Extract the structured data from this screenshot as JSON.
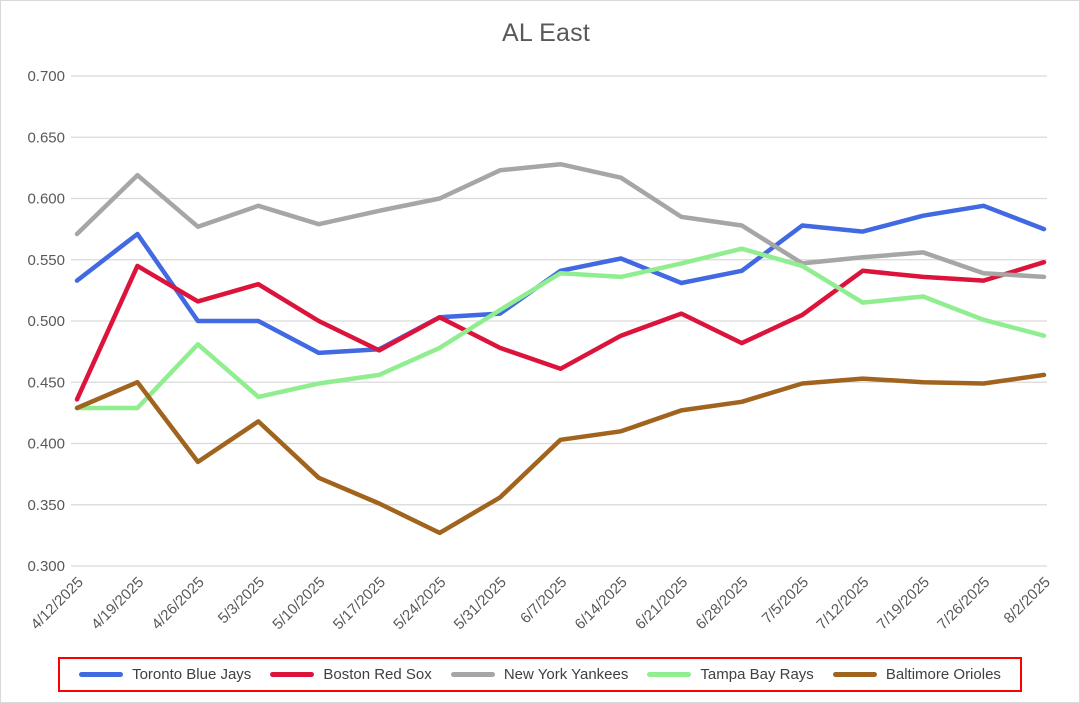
{
  "title": "AL East",
  "chart_data": {
    "type": "line",
    "title": "AL East",
    "categories": [
      "4/12/2025",
      "4/19/2025",
      "4/26/2025",
      "5/3/2025",
      "5/10/2025",
      "5/17/2025",
      "5/24/2025",
      "5/31/2025",
      "6/7/2025",
      "6/14/2025",
      "6/21/2025",
      "6/28/2025",
      "7/5/2025",
      "7/12/2025",
      "7/19/2025",
      "7/26/2025",
      "8/2/2025"
    ],
    "series": [
      {
        "name": "Toronto Blue Jays",
        "color": "#4169e1",
        "values": [
          0.533,
          0.571,
          0.5,
          0.5,
          0.474,
          0.477,
          0.503,
          0.506,
          0.541,
          0.551,
          0.531,
          0.541,
          0.578,
          0.573,
          0.586,
          0.594,
          0.575
        ]
      },
      {
        "name": "Boston Red Sox",
        "color": "#dc143c",
        "values": [
          0.436,
          0.545,
          0.516,
          0.53,
          0.5,
          0.476,
          0.503,
          0.478,
          0.461,
          0.488,
          0.506,
          0.482,
          0.505,
          0.541,
          0.536,
          0.533,
          0.548
        ]
      },
      {
        "name": "New York Yankees",
        "color": "#a6a6a6",
        "values": [
          0.571,
          0.619,
          0.577,
          0.594,
          0.579,
          0.59,
          0.6,
          0.623,
          0.628,
          0.617,
          0.585,
          0.578,
          0.547,
          0.552,
          0.556,
          0.539,
          0.536
        ]
      },
      {
        "name": "Tampa Bay Rays",
        "color": "#90ee90",
        "values": [
          0.429,
          0.429,
          0.481,
          0.438,
          0.449,
          0.456,
          0.478,
          0.509,
          0.539,
          0.536,
          0.547,
          0.559,
          0.545,
          0.515,
          0.52,
          0.501,
          0.488
        ]
      },
      {
        "name": "Baltimore Orioles",
        "color": "#a0641e",
        "values": [
          0.429,
          0.45,
          0.385,
          0.418,
          0.372,
          0.351,
          0.327,
          0.356,
          0.403,
          0.41,
          0.427,
          0.434,
          0.449,
          0.453,
          0.45,
          0.449,
          0.456
        ]
      }
    ],
    "xlabel": "",
    "ylabel": "",
    "ylim": [
      0.3,
      0.7
    ],
    "ytick_step": 0.05,
    "ytick_labels": [
      "0.300",
      "0.350",
      "0.400",
      "0.450",
      "0.500",
      "0.550",
      "0.600",
      "0.650",
      "0.700"
    ],
    "grid": true,
    "legend_position": "bottom"
  },
  "colors": {
    "title_text": "#595959",
    "axis_text": "#595959",
    "legend_text": "#404040",
    "gridline": "#d9d9d9",
    "legend_border": "#ff0000",
    "chart_border": "#d9d9d9",
    "background": "#ffffff"
  }
}
